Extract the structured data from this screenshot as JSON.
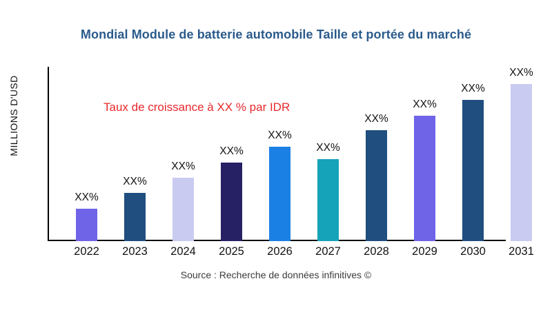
{
  "page": {
    "title": "Mondial Module de batterie automobile Taille et portée du marché",
    "annotation": "Taux de croissance à XX % par IDR",
    "ylabel": "MILLIONS D'USD",
    "source": "Source : Recherche de données infinitives ©"
  },
  "colors": {
    "title_text": "#2A5A8C",
    "annotation_text": "#E8282C",
    "axis": "#000000",
    "label_text": "#111111"
  },
  "chart_data": {
    "type": "bar",
    "title": "Mondial Module de batterie automobile Taille et portée du marché",
    "xlabel": "",
    "ylabel": "MILLIONS D'USD",
    "annotation": "Taux de croissance à XX % par IDR",
    "legend": false,
    "grid": false,
    "values_masked": true,
    "categories": [
      "2022",
      "2023",
      "2024",
      "2025",
      "2026",
      "2027",
      "2028",
      "2029",
      "2030",
      "2031"
    ],
    "bar_labels": [
      "XX%",
      "XX%",
      "XX%",
      "XX%",
      "XX%",
      "XX%",
      "XX%",
      "XX%",
      "XX%",
      "XX%"
    ],
    "relative_heights": [
      47,
      70,
      92,
      114,
      137,
      119,
      161,
      182,
      205,
      228
    ],
    "bar_colors": [
      "#6F63E8",
      "#1F4E7F",
      "#C9CBF0",
      "#262065",
      "#1B80E4",
      "#14A3B8",
      "#1F4E7F",
      "#6F63E8",
      "#1F4E7F",
      "#C9CBF0"
    ]
  }
}
